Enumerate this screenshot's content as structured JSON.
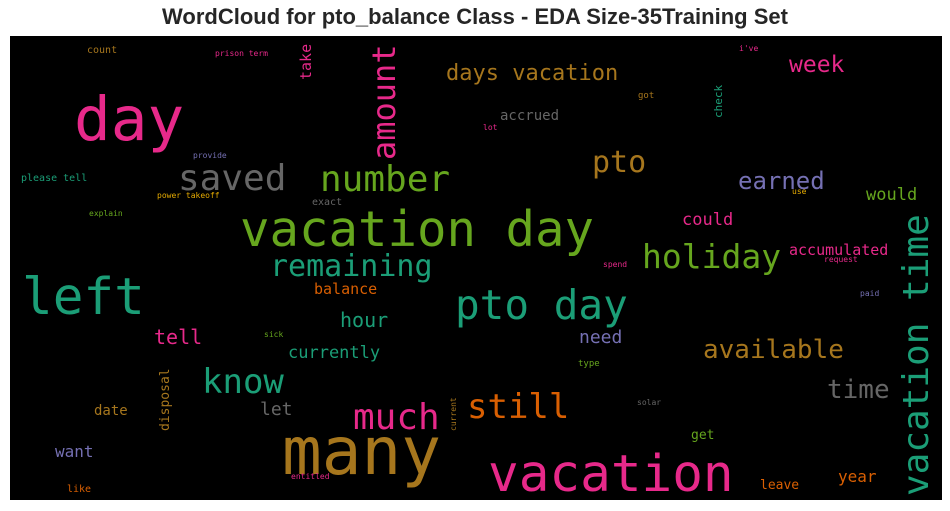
{
  "chart_data": {
    "type": "wordcloud",
    "title": "WordCloud for pto_balance Class - EDA Size-35Training Set",
    "background": "#000000",
    "words": [
      {
        "text": "many",
        "size": 1.0,
        "color": "#a6761d"
      },
      {
        "text": "vacation",
        "size": 0.78,
        "color": "#e7298a"
      },
      {
        "text": "vacation day",
        "size": 0.74,
        "color": "#66a61e"
      },
      {
        "text": "day",
        "size": 0.92,
        "color": "#e7298a"
      },
      {
        "text": "left",
        "size": 0.77,
        "color": "#1b9e77"
      },
      {
        "text": "pto day",
        "size": 0.62,
        "color": "#1b9e77"
      },
      {
        "text": "vacation time",
        "size": 0.55,
        "color": "#1b9e77"
      },
      {
        "text": "much",
        "size": 0.55,
        "color": "#e7298a"
      },
      {
        "text": "saved",
        "size": 0.55,
        "color": "#666666"
      },
      {
        "text": "number",
        "size": 0.55,
        "color": "#66a61e"
      },
      {
        "text": "amount",
        "size": 0.49,
        "color": "#e7298a"
      },
      {
        "text": "still",
        "size": 0.52,
        "color": "#d95f02"
      },
      {
        "text": "know",
        "size": 0.52,
        "color": "#1b9e77"
      },
      {
        "text": "holiday",
        "size": 0.5,
        "color": "#66a61e"
      },
      {
        "text": "pto",
        "size": 0.46,
        "color": "#a6761d"
      },
      {
        "text": "remaining",
        "size": 0.46,
        "color": "#1b9e77"
      },
      {
        "text": "available",
        "size": 0.4,
        "color": "#a6761d"
      },
      {
        "text": "time",
        "size": 0.4,
        "color": "#666666"
      },
      {
        "text": "earned",
        "size": 0.37,
        "color": "#7570b3"
      },
      {
        "text": "week",
        "size": 0.35,
        "color": "#e7298a"
      },
      {
        "text": "days vacation",
        "size": 0.34,
        "color": "#a6761d"
      },
      {
        "text": "tell",
        "size": 0.3,
        "color": "#e7298a"
      },
      {
        "text": "hour",
        "size": 0.3,
        "color": "#1b9e77"
      },
      {
        "text": "let",
        "size": 0.28,
        "color": "#666666"
      },
      {
        "text": "currently",
        "size": 0.26,
        "color": "#1b9e77"
      },
      {
        "text": "need",
        "size": 0.27,
        "color": "#7570b3"
      },
      {
        "text": "could",
        "size": 0.25,
        "color": "#e7298a"
      },
      {
        "text": "would",
        "size": 0.25,
        "color": "#66a61e"
      },
      {
        "text": "take",
        "size": 0.23,
        "color": "#e7298a"
      },
      {
        "text": "balance",
        "size": 0.23,
        "color": "#d95f02"
      },
      {
        "text": "accumulated",
        "size": 0.22,
        "color": "#e7298a"
      },
      {
        "text": "year",
        "size": 0.24,
        "color": "#d95f02"
      },
      {
        "text": "want",
        "size": 0.24,
        "color": "#7570b3"
      },
      {
        "text": "date",
        "size": 0.21,
        "color": "#a6761d"
      },
      {
        "text": "disposal",
        "size": 0.2,
        "color": "#a6761d"
      },
      {
        "text": "accrued",
        "size": 0.21,
        "color": "#666666"
      },
      {
        "text": "get",
        "size": 0.2,
        "color": "#66a61e"
      },
      {
        "text": "leave",
        "size": 0.19,
        "color": "#d95f02"
      },
      {
        "text": "check",
        "size": 0.16,
        "color": "#1b9e77"
      },
      {
        "text": "count",
        "size": 0.15,
        "color": "#a6761d"
      },
      {
        "text": "exact",
        "size": 0.15,
        "color": "#666666"
      },
      {
        "text": "please tell",
        "size": 0.15,
        "color": "#1b9e77"
      },
      {
        "text": "like",
        "size": 0.15,
        "color": "#d95f02"
      },
      {
        "text": "got",
        "size": 0.14,
        "color": "#a6761d"
      },
      {
        "text": "type",
        "size": 0.14,
        "color": "#66a61e"
      },
      {
        "text": "lot",
        "size": 0.12,
        "color": "#e7298a"
      },
      {
        "text": "prison term",
        "size": 0.12,
        "color": "#e7298a"
      },
      {
        "text": "provide",
        "size": 0.12,
        "color": "#7570b3"
      },
      {
        "text": "power takeoff",
        "size": 0.12,
        "color": "#e6ab02"
      },
      {
        "text": "explain",
        "size": 0.12,
        "color": "#66a61e"
      },
      {
        "text": "use",
        "size": 0.11,
        "color": "#e6ab02"
      },
      {
        "text": "i've",
        "size": 0.11,
        "color": "#e7298a"
      },
      {
        "text": "spend",
        "size": 0.11,
        "color": "#e7298a"
      },
      {
        "text": "request",
        "size": 0.11,
        "color": "#e7298a"
      },
      {
        "text": "paid",
        "size": 0.11,
        "color": "#7570b3"
      },
      {
        "text": "sick",
        "size": 0.11,
        "color": "#66a61e"
      },
      {
        "text": "current",
        "size": 0.11,
        "color": "#a6761d"
      },
      {
        "text": "entitled",
        "size": 0.11,
        "color": "#e7298a"
      },
      {
        "text": "solar",
        "size": 0.11,
        "color": "#666666"
      }
    ]
  }
}
